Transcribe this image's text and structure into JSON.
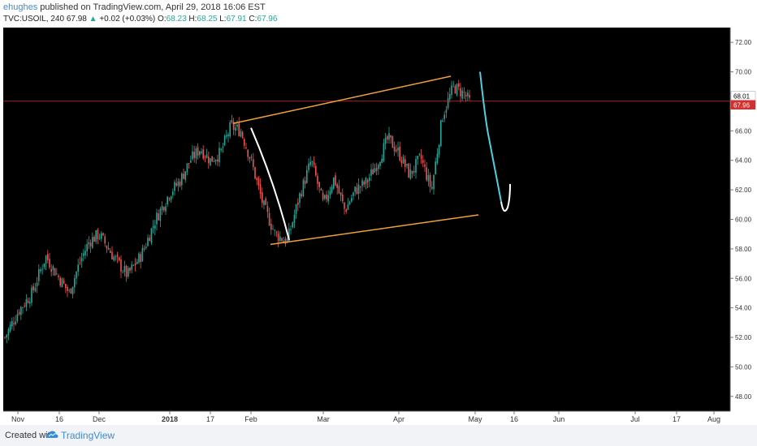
{
  "header": {
    "author": "ehughes",
    "published_text": "published on TradingView.com, April 29, 2018 16:06 EST",
    "symbol": "TVC:USOIL",
    "interval": "240",
    "last": "67.98",
    "change_arrow": "▲",
    "change": "+0.02 (+0.03%)",
    "open_label": "O:",
    "open": "68.23",
    "high_label": "H:",
    "high": "68.25",
    "low_label": "L:",
    "low": "67.91",
    "close_label": "C:",
    "close": "67.96"
  },
  "footer": {
    "created_with": "Created with",
    "brand": "TradingView",
    "logo_icon": "tradingview-cloud-icon"
  },
  "colors": {
    "background": "#000000",
    "up_candle": "#26a69a",
    "down_candle": "#ef5350",
    "channel": "#f0a040",
    "projection": "#4dd0e1",
    "hand_line": "#ffffff",
    "price_line": "#d32f2f"
  },
  "chart_data": {
    "type": "candlestick",
    "ylim": [
      47,
      73
    ],
    "y_ticks": [
      "48.00",
      "50.00",
      "52.00",
      "54.00",
      "56.00",
      "58.00",
      "60.00",
      "62.00",
      "64.00",
      "66.00",
      "68.00",
      "70.00",
      "72.00"
    ],
    "x_ticks": [
      "Nov",
      "16",
      "Dec",
      "2018",
      "17",
      "Feb",
      "Mar",
      "Apr",
      "May",
      "16",
      "Jun",
      "Jul",
      "17",
      "Aug"
    ],
    "price_labels": [
      "68.01",
      "67.96"
    ],
    "current_price": 68.01,
    "price_path": [
      [
        "Nov",
        52.0
      ],
      [
        "Nov",
        53.8
      ],
      [
        "Nov",
        55.0
      ],
      [
        "Nov",
        57.5
      ],
      [
        "16",
        56.0
      ],
      [
        "16",
        55.0
      ],
      [
        "16",
        57.0
      ],
      [
        "16",
        58.5
      ],
      [
        "Dec",
        59.0
      ],
      [
        "Dec",
        57.5
      ],
      [
        "Dec",
        56.2
      ],
      [
        "Dec",
        57.6
      ],
      [
        "Dec",
        60.0
      ],
      [
        "2018",
        61.8
      ],
      [
        "2018",
        62.6
      ],
      [
        "2018",
        64.0
      ],
      [
        "2018",
        64.8
      ],
      [
        "17",
        64.0
      ],
      [
        "17",
        64.5
      ],
      [
        "17",
        66.3
      ],
      [
        "17",
        66.0
      ],
      [
        "Feb",
        64.0
      ],
      [
        "Feb",
        61.0
      ],
      [
        "Feb",
        59.0
      ],
      [
        "Feb",
        58.5
      ],
      [
        "Feb",
        61.5
      ],
      [
        "Feb",
        64.0
      ],
      [
        "Mar",
        61.0
      ],
      [
        "Mar",
        62.8
      ],
      [
        "Mar",
        60.6
      ],
      [
        "Mar",
        62.0
      ],
      [
        "Mar",
        62.5
      ],
      [
        "Mar",
        63.8
      ],
      [
        "Mar",
        65.5
      ],
      [
        "Apr",
        64.5
      ],
      [
        "Apr",
        63.0
      ],
      [
        "Apr",
        64.2
      ],
      [
        "Apr",
        62.0
      ],
      [
        "Apr",
        67.0
      ],
      [
        "Apr",
        69.0
      ],
      [
        "Apr",
        68.5
      ],
      [
        "May",
        67.98
      ]
    ]
  }
}
